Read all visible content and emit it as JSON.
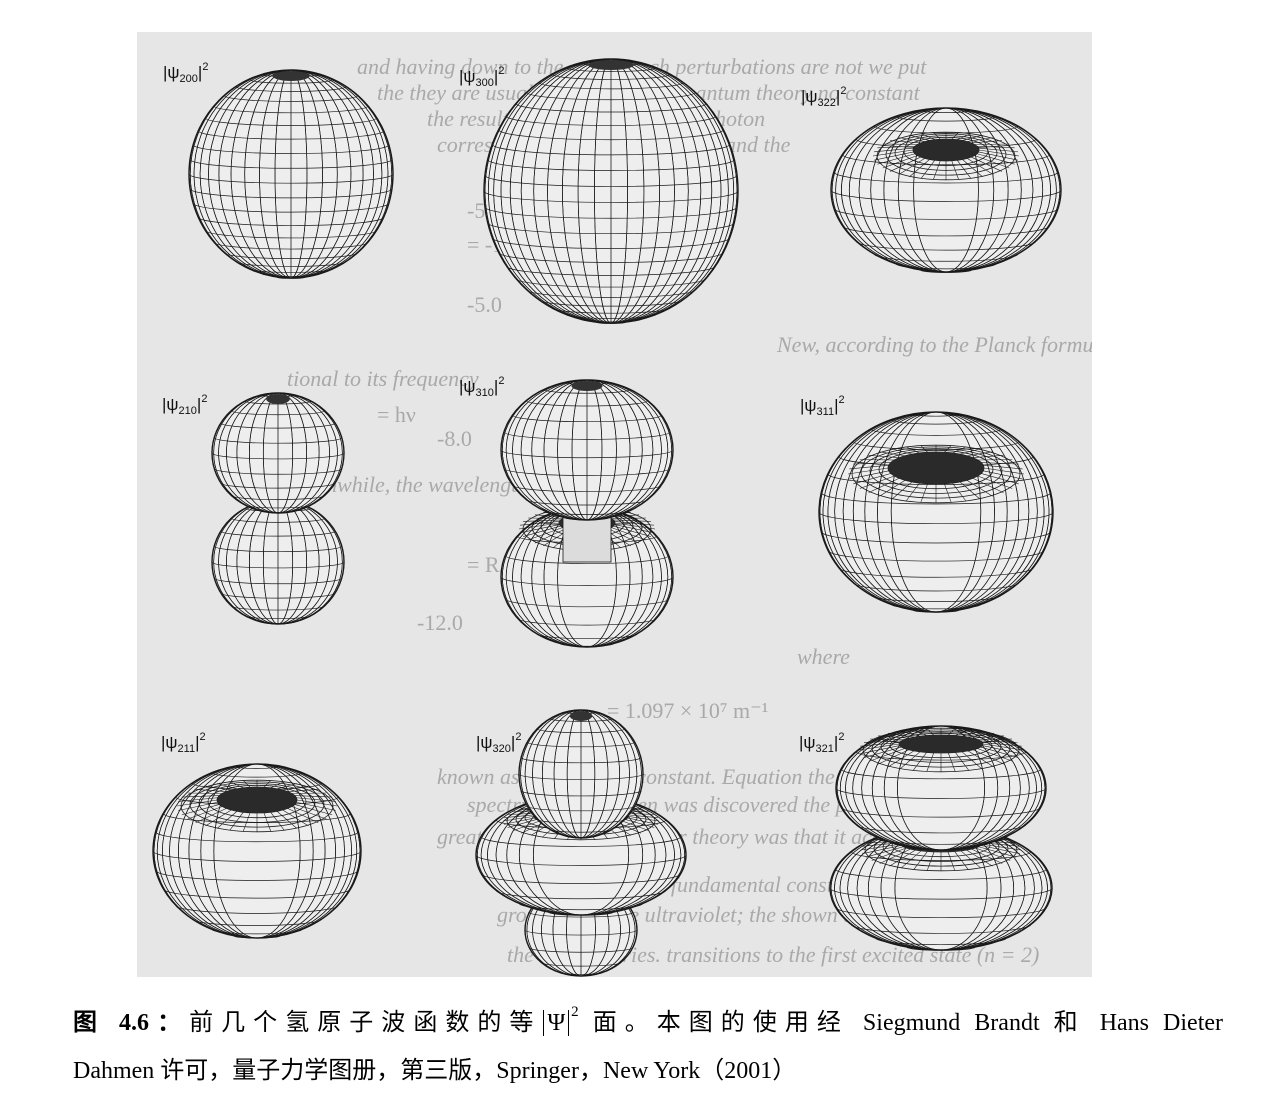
{
  "figure": {
    "orbitals": [
      {
        "id": "psi200",
        "psi": "ψ",
        "n": "200",
        "power": "2",
        "shape": "sphere"
      },
      {
        "id": "psi300",
        "psi": "ψ",
        "n": "300",
        "power": "2",
        "shape": "sphere"
      },
      {
        "id": "psi322",
        "psi": "ψ",
        "n": "322",
        "power": "2",
        "shape": "torus"
      },
      {
        "id": "psi210",
        "psi": "ψ",
        "n": "210",
        "power": "2",
        "shape": "dumbbell"
      },
      {
        "id": "psi310",
        "psi": "ψ",
        "n": "310",
        "power": "2",
        "shape": "dumbbell-ring"
      },
      {
        "id": "psi311",
        "psi": "ψ",
        "n": "311",
        "power": "2",
        "shape": "torus"
      },
      {
        "id": "psi211",
        "psi": "ψ",
        "n": "211",
        "power": "2",
        "shape": "torus"
      },
      {
        "id": "psi320",
        "psi": "ψ",
        "n": "320",
        "power": "2",
        "shape": "lobes-ring"
      },
      {
        "id": "psi321",
        "psi": "ψ",
        "n": "321",
        "power": "2",
        "shape": "double-torus"
      }
    ],
    "background_text": [
      "and having down to the action such perturbations are not we put",
      "the they are usual to the Planck's quantum theory no constant",
      "the result is the hydrogen atom photon",
      "corresponds the energy between and the",
      "-5.0",
      "= -13.6",
      "-5.0",
      "New, according to the Planck formula, the energy of a photon",
      "tional to its frequency",
      "= hν",
      "-8.0",
      "Meanwhile, the wavelength is given by λ =",
      "= R",
      "-12.0",
      "where",
      "= 1.097 × 10⁷ m⁻¹",
      "known as the Rydberg constant. Equation the Rydberg",
      "spectrum of hydrogen was discovered the parameter",
      "greatest triumph of the Bohr theory was that it account for",
      "to calculate R from fundamental constants of nature.",
      "ground state the ultraviolet; the shown to",
      "the Lyman series. transitions to the first excited state (n = 2)"
    ]
  },
  "caption": {
    "fig_label": "图 4.6：",
    "text_before": "前几个氢原子波函数的等",
    "psi_symbol": "Ψ",
    "power": "2",
    "text_after": "面。本图的使用经 Siegmund Brandt 和 Hans Dieter",
    "line2": "Dahmen 许可，量子力学图册，第三版，Springer，New York（2001）"
  },
  "colors": {
    "plate": "#e6e6e6",
    "mesh": "#1a1a1a",
    "orbital_fill": "#eeeeee",
    "faint_text": "#a9a9a9"
  }
}
